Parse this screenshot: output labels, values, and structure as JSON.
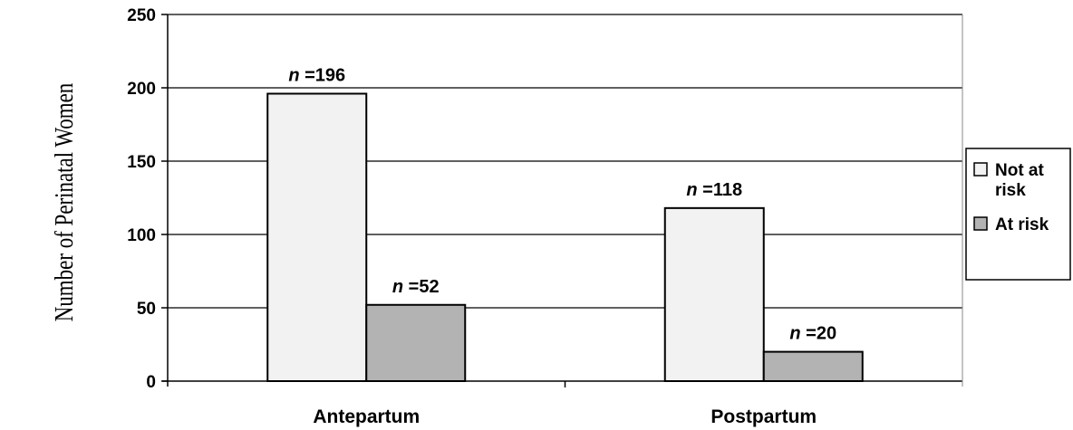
{
  "chart_data": {
    "type": "bar",
    "ylabel": "Number of Perinatal Women",
    "xlabel": "",
    "ylim": [
      0,
      250
    ],
    "yticks": [
      0,
      50,
      100,
      150,
      200,
      250
    ],
    "grid": true,
    "legend_position": "right",
    "categories": [
      "Antepartum",
      "Postpartum"
    ],
    "series": [
      {
        "name": "Not at risk",
        "legend_lines": [
          "Not at",
          "risk"
        ],
        "color": "#f2f2f2",
        "values": [
          196,
          118
        ],
        "labels": [
          "196",
          "118"
        ]
      },
      {
        "name": "At risk",
        "legend_lines": [
          "At risk"
        ],
        "color": "#b3b3b3",
        "values": [
          52,
          20
        ],
        "labels": [
          "52",
          "20"
        ]
      }
    ],
    "label_prefix": "n"
  }
}
